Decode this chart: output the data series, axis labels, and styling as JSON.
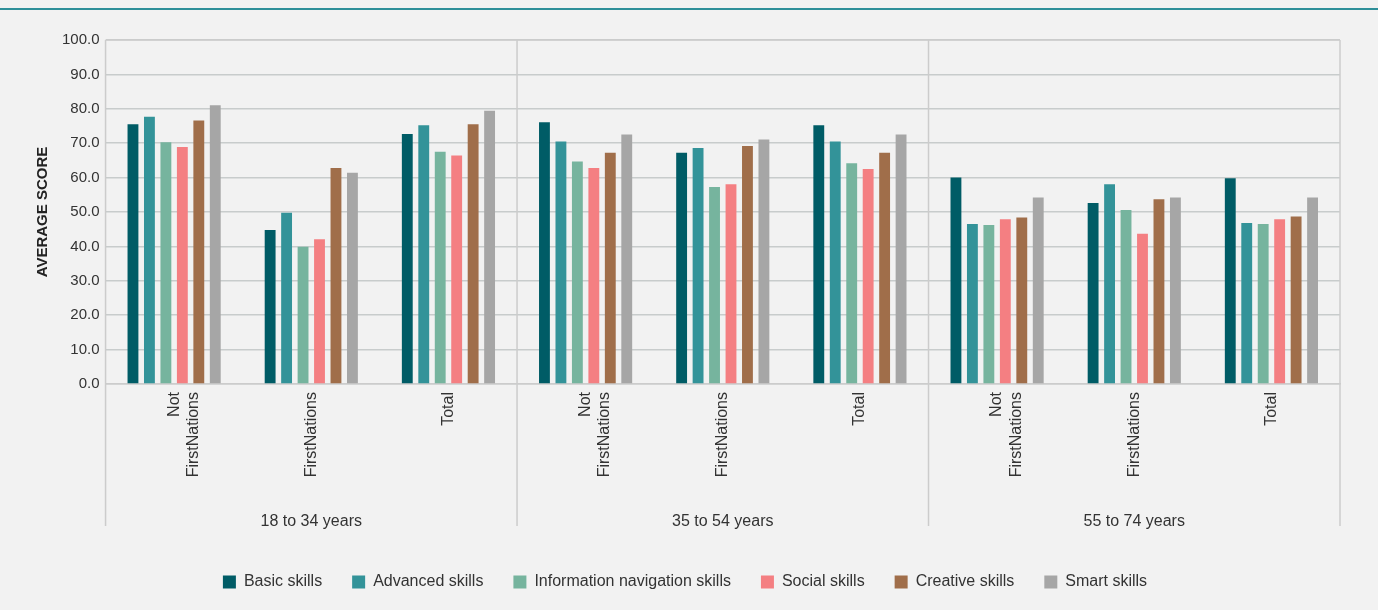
{
  "chart_data": {
    "type": "bar",
    "ylabel": "AVERAGE SCORE",
    "categories": [
      "Not FirstNations",
      "FirstNations",
      "Total",
      "Not FirstNations",
      "FirstNations",
      "Total",
      "Not FirstNations",
      "FirstNations",
      "Total"
    ],
    "annotations": [
      "18 to 34 years",
      "35 to 54 years",
      "55 to 74 years"
    ],
    "series": [
      {
        "name": "Basic skills",
        "color": "#005c66",
        "values": [
          75.5,
          44.8,
          72.7,
          76.1,
          67.2,
          75.2,
          60.0,
          52.6,
          59.8
        ]
      },
      {
        "name": "Advanced skills",
        "color": "#339399",
        "values": [
          77.7,
          49.8,
          75.2,
          70.5,
          68.6,
          70.5,
          46.5,
          58.1,
          46.8
        ]
      },
      {
        "name": "Information navigation skills",
        "color": "#76b49e",
        "values": [
          70.3,
          39.9,
          67.5,
          64.7,
          57.3,
          64.2,
          46.2,
          50.6,
          46.5
        ]
      },
      {
        "name": "Social skills",
        "color": "#f47f82",
        "values": [
          68.9,
          42.1,
          66.4,
          62.8,
          58.1,
          62.5,
          47.9,
          43.7,
          47.9
        ]
      },
      {
        "name": "Creative skills",
        "color": "#a06e4a",
        "values": [
          76.6,
          62.8,
          75.5,
          67.2,
          69.2,
          67.2,
          48.4,
          53.7,
          48.7
        ]
      },
      {
        "name": "Smart skills",
        "color": "#a6a6a6",
        "values": [
          81.0,
          61.4,
          79.4,
          72.5,
          71.1,
          72.5,
          54.2,
          54.2,
          54.2
        ]
      }
    ],
    "ylim": [
      0,
      100
    ],
    "yticks": [
      {
        "value": 0,
        "label": "0.0"
      },
      {
        "value": 10,
        "label": "10.0"
      },
      {
        "value": 20,
        "label": "20.0"
      },
      {
        "value": 30,
        "label": "30.0"
      },
      {
        "value": 40,
        "label": "40.0"
      },
      {
        "value": 50,
        "label": "50.0"
      },
      {
        "value": 60,
        "label": "60.0"
      },
      {
        "value": 70,
        "label": "70.0"
      },
      {
        "value": 80,
        "label": "80.0"
      },
      {
        "value": 90,
        "label": "90.0"
      },
      {
        "value": 100,
        "label": "100.0"
      }
    ],
    "grid": "y",
    "legend": "bottom"
  }
}
